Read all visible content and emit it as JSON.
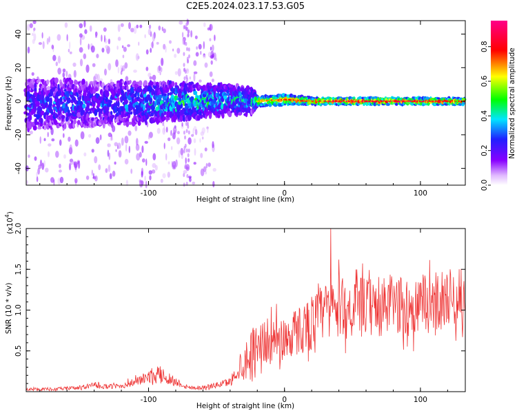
{
  "title": "C2E5.2024.023.17.53.G05",
  "chart_data": [
    {
      "type": "heatmap",
      "xlabel": "Height of straight line (km)",
      "ylabel": "Frequency (Hz)",
      "xlim": [
        -190,
        133
      ],
      "ylim": [
        -50,
        48
      ],
      "x_ticks": [
        -100,
        0,
        100
      ],
      "x_tick_labels": [
        "-100",
        "0",
        "100"
      ],
      "y_ticks": [
        -40,
        -20,
        0,
        20,
        40
      ],
      "y_tick_labels": [
        "-40",
        "-20",
        "0",
        "20",
        "40"
      ],
      "colorbar": {
        "label": "Normalized spectral amplitude",
        "range": [
          0,
          0.95
        ],
        "ticks": [
          0.0,
          0.2,
          0.4,
          0.6,
          0.8
        ],
        "tick_labels": [
          "0.0",
          "0.2",
          "0.4",
          "0.6",
          "0.8"
        ],
        "colormap": [
          "#ffffff",
          "#8800ff",
          "#2020ff",
          "#00e5ff",
          "#00ff00",
          "#ffff00",
          "#ff0000",
          "#ff0088"
        ]
      },
      "trace": {
        "x": [
          -185,
          -160,
          -140,
          -120,
          -100,
          -80,
          -60,
          -40,
          -25,
          -20,
          0,
          20,
          40,
          60,
          80,
          100,
          120,
          133
        ],
        "center_hz": [
          -2,
          -1,
          -2,
          -1,
          -1,
          0,
          0,
          1,
          0,
          0,
          1,
          0,
          0,
          0,
          0,
          0,
          0,
          0
        ],
        "halfwidth_hz": [
          15,
          14,
          13,
          13,
          12,
          11,
          10,
          9,
          8,
          3,
          3,
          2,
          2,
          2,
          2,
          2,
          2,
          2
        ],
        "peak_amplitude": [
          0.35,
          0.4,
          0.35,
          0.4,
          0.45,
          0.55,
          0.55,
          0.5,
          0.5,
          0.7,
          0.8,
          0.85,
          0.9,
          0.9,
          0.9,
          0.9,
          0.85,
          0.85
        ]
      },
      "grid": false,
      "legend": "none"
    },
    {
      "type": "line",
      "xlabel": "Height of straight line (km)",
      "ylabel": "SNR (10 * v/v)",
      "y_multiplier_label": "(x10",
      "y_multiplier_exponent": "4",
      "y_multiplier_close": ")",
      "xlim": [
        -190,
        133
      ],
      "ylim": [
        0,
        2.0
      ],
      "x_ticks": [
        -100,
        0,
        100
      ],
      "x_tick_labels": [
        "-100",
        "0",
        "100"
      ],
      "y_ticks": [
        0.5,
        1.0,
        1.5,
        2.0
      ],
      "y_tick_labels": [
        "0.5",
        "1.0",
        "1.5",
        "2.0"
      ],
      "series": [
        {
          "color": "#ee3333",
          "x": [
            -190,
            -170,
            -150,
            -140,
            -130,
            -120,
            -110,
            -100,
            -90,
            -80,
            -70,
            -60,
            -50,
            -40,
            -35,
            -30,
            -25,
            -20,
            -10,
            0,
            10,
            20,
            30,
            40,
            50,
            60,
            70,
            80,
            90,
            100,
            110,
            120,
            133
          ],
          "y": [
            0.03,
            0.03,
            0.05,
            0.08,
            0.06,
            0.07,
            0.12,
            0.18,
            0.2,
            0.12,
            0.05,
            0.05,
            0.08,
            0.12,
            0.25,
            0.35,
            0.5,
            0.6,
            0.62,
            0.65,
            0.75,
            0.85,
            1.0,
            1.05,
            1.0,
            1.05,
            1.0,
            1.1,
            1.0,
            1.05,
            1.1,
            1.15,
            1.15
          ],
          "noise_amplitude": [
            0.02,
            0.02,
            0.03,
            0.04,
            0.03,
            0.04,
            0.06,
            0.08,
            0.12,
            0.06,
            0.03,
            0.03,
            0.04,
            0.06,
            0.12,
            0.25,
            0.3,
            0.3,
            0.32,
            0.33,
            0.34,
            0.38,
            0.4,
            0.42,
            0.42,
            0.4,
            0.4,
            0.42,
            0.4,
            0.42,
            0.42,
            0.4,
            0.4
          ]
        }
      ],
      "peak": {
        "x": 34,
        "y": 2.0
      },
      "grid": false,
      "legend": "none"
    }
  ]
}
